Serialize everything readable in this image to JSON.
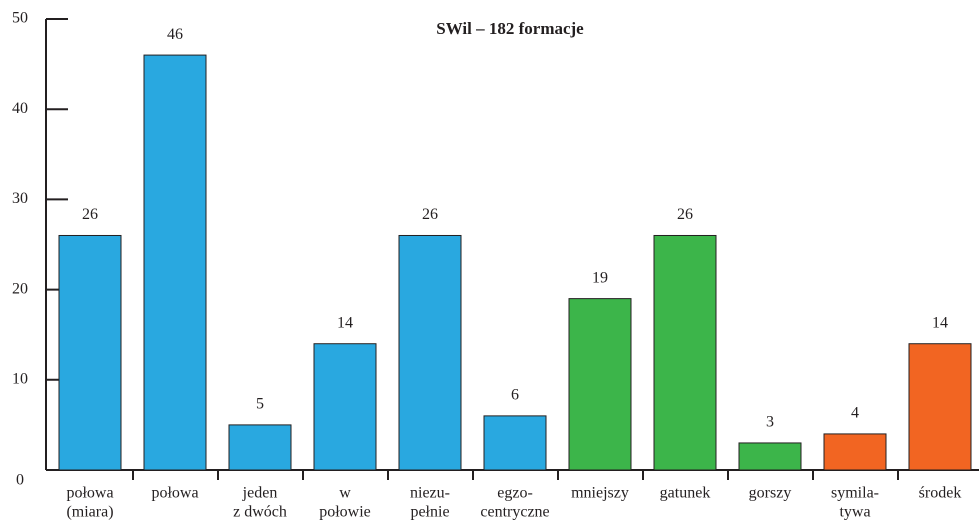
{
  "chart_data": {
    "type": "bar",
    "title": "SWil – 182 formacje",
    "categories": [
      [
        "połowa",
        "(miara)"
      ],
      [
        "połowa"
      ],
      [
        "jeden",
        "z dwóch"
      ],
      [
        "w",
        "połowie"
      ],
      [
        "niezu-",
        "pełnie"
      ],
      [
        "egzo-",
        "centryczne"
      ],
      [
        "mniejszy"
      ],
      [
        "gatunek"
      ],
      [
        "gorszy"
      ],
      [
        "symila-",
        "tywa"
      ],
      [
        "środek"
      ]
    ],
    "values": [
      26,
      46,
      5,
      14,
      26,
      6,
      19,
      26,
      3,
      4,
      14
    ],
    "colors": [
      "#29a8e0",
      "#29a8e0",
      "#29a8e0",
      "#29a8e0",
      "#29a8e0",
      "#29a8e0",
      "#3cb54a",
      "#3cb54a",
      "#3cb54a",
      "#f26522",
      "#f26522"
    ],
    "ylim": [
      0,
      50
    ],
    "yticks": [
      0,
      10,
      20,
      30,
      40,
      50
    ],
    "grid": false
  }
}
